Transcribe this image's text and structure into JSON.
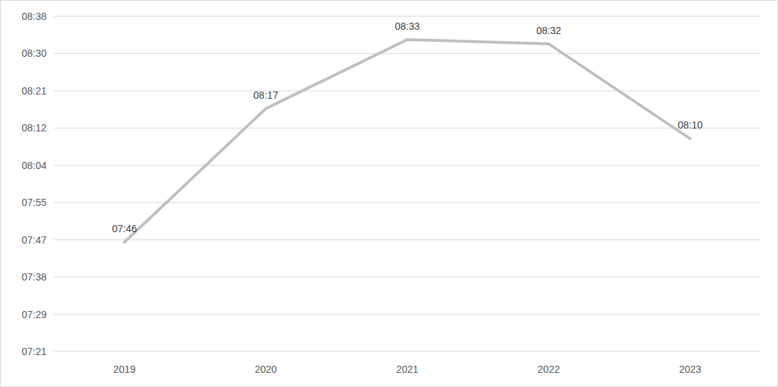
{
  "chart_data": {
    "type": "line",
    "categories": [
      "2019",
      "2020",
      "2021",
      "2022",
      "2023"
    ],
    "values": [
      466,
      497,
      513,
      512,
      490
    ],
    "value_labels": [
      "07:46",
      "08:17",
      "08:33",
      "08:32",
      "08:10"
    ],
    "color": "#bfbfbf",
    "ylim": [
      440.64,
      518.4
    ],
    "yticks": [
      {
        "value": 440.64,
        "label": "07:21"
      },
      {
        "value": 449.28,
        "label": "07:29"
      },
      {
        "value": 457.92,
        "label": "07:38"
      },
      {
        "value": 466.56,
        "label": "07:47"
      },
      {
        "value": 475.2,
        "label": "07:55"
      },
      {
        "value": 483.84,
        "label": "08:04"
      },
      {
        "value": 492.48,
        "label": "08:12"
      },
      {
        "value": 501.12,
        "label": "08:21"
      },
      {
        "value": 509.76,
        "label": "08:30"
      },
      {
        "value": 518.4,
        "label": "08:38"
      }
    ],
    "grid": true,
    "data_labels": true
  }
}
